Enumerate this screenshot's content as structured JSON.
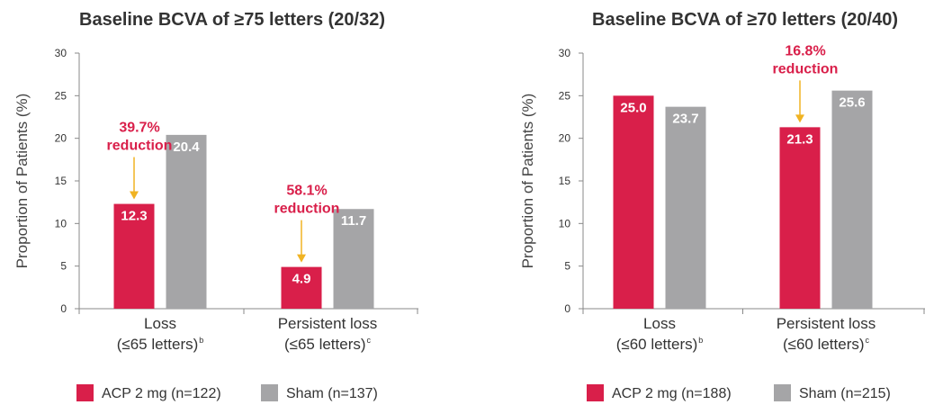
{
  "colors": {
    "acp": "#d91f4a",
    "sham": "#a5a5a7",
    "arrow": "#f0b323",
    "axis": "#888888"
  },
  "chart_data": [
    {
      "type": "bar",
      "title": "Baseline BCVA of ≥75 letters (20/32)",
      "ylabel": "Proportion of Patients (%)",
      "ylim": [
        0,
        30
      ],
      "yticks": [
        0,
        5,
        10,
        15,
        20,
        25,
        30
      ],
      "categories": [
        {
          "line1": "Loss",
          "line2": "(≤65 letters)",
          "sup": "b"
        },
        {
          "line1": "Persistent loss",
          "line2": "(≤65 letters)",
          "sup": "c"
        }
      ],
      "series": [
        {
          "name": "ACP 2 mg (n=122)",
          "values": [
            12.3,
            4.9
          ],
          "labels": [
            "12.3",
            "4.9"
          ]
        },
        {
          "name": "Sham (n=137)",
          "values": [
            20.4,
            11.7
          ],
          "labels": [
            "20.4",
            "11.7"
          ]
        }
      ],
      "annotations": [
        {
          "category": 0,
          "line1": "39.7%",
          "line2": "reduction"
        },
        {
          "category": 1,
          "line1": "58.1%",
          "line2": "reduction"
        }
      ]
    },
    {
      "type": "bar",
      "title": "Baseline BCVA of ≥70 letters (20/40)",
      "ylabel": "Proportion of Patients (%)",
      "ylim": [
        0,
        30
      ],
      "yticks": [
        0,
        5,
        10,
        15,
        20,
        25,
        30
      ],
      "categories": [
        {
          "line1": "Loss",
          "line2": "(≤60 letters)",
          "sup": "b"
        },
        {
          "line1": "Persistent loss",
          "line2": "(≤60 letters)",
          "sup": "c"
        }
      ],
      "series": [
        {
          "name": "ACP 2 mg (n=188)",
          "values": [
            25.0,
            21.3
          ],
          "labels": [
            "25.0",
            "21.3"
          ]
        },
        {
          "name": "Sham (n=215)",
          "values": [
            23.7,
            25.6
          ],
          "labels": [
            "23.7",
            "25.6"
          ]
        }
      ],
      "annotations": [
        {
          "category": 1,
          "line1": "16.8%",
          "line2": "reduction"
        }
      ]
    }
  ]
}
